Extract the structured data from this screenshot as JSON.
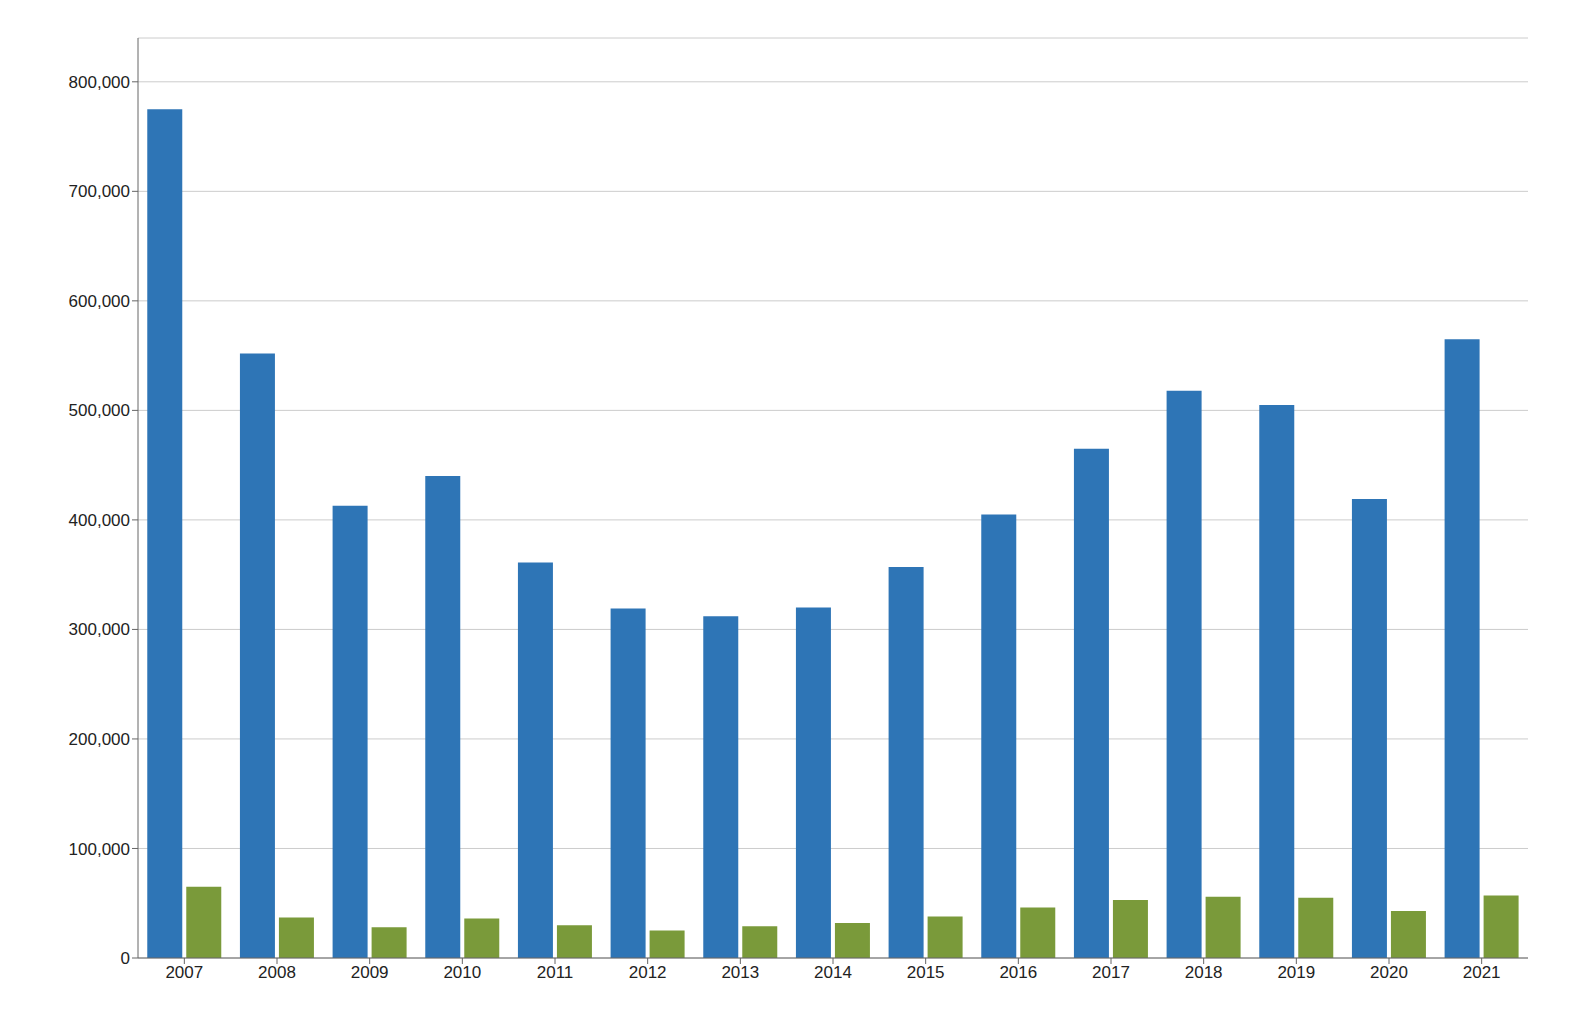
{
  "chart_data": {
    "type": "bar",
    "categories": [
      "2007",
      "2008",
      "2009",
      "2010",
      "2011",
      "2012",
      "2013",
      "2014",
      "2015",
      "2016",
      "2017",
      "2018",
      "2019",
      "2020",
      "2021"
    ],
    "series": [
      {
        "color": "#2e75b6",
        "values": [
          775000,
          552000,
          413000,
          440000,
          361000,
          319000,
          312000,
          320000,
          357000,
          405000,
          465000,
          518000,
          505000,
          419000,
          565000
        ]
      },
      {
        "color": "#7a9a3a",
        "values": [
          65000,
          37000,
          28000,
          36000,
          30000,
          25000,
          29000,
          32000,
          38000,
          46000,
          53000,
          56000,
          55000,
          43000,
          57000
        ]
      }
    ],
    "ylim": [
      0,
      840000
    ],
    "yticks": [
      0,
      {
        "value": 100000,
        "label": "100,000"
      },
      {
        "value": 200000,
        "label": "200,000"
      },
      {
        "value": 300000,
        "label": "300,000"
      },
      {
        "value": 400000,
        "label": "400,000"
      },
      {
        "value": 500000,
        "label": "500,000"
      },
      {
        "value": 600000,
        "label": "600,000"
      },
      {
        "value": 700000,
        "label": "700,000"
      },
      {
        "value": 800000,
        "label": "800,000"
      }
    ],
    "grid": true
  }
}
